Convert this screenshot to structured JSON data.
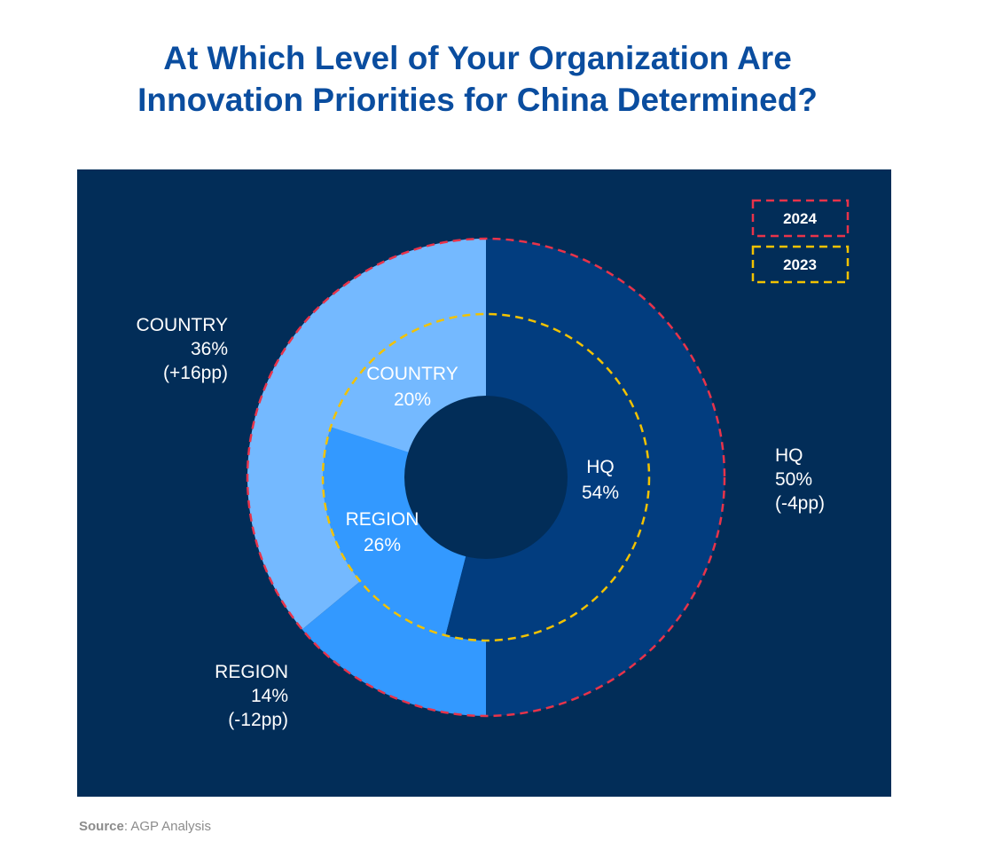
{
  "title_line1": "At Which Level of Your Organization Are",
  "title_line2": "Innovation Priorities for China Determined?",
  "source_label": "Source",
  "source_text": ": AGP Analysis",
  "colors": {
    "title": "#0a4d9f",
    "panel_bg": "#022d58",
    "hq": "#023d7f",
    "region": "#3399ff",
    "country": "#74b9ff",
    "legend_2024": "#e8334a",
    "legend_2023": "#f2c200",
    "label": "#ffffff"
  },
  "legend": {
    "items": [
      {
        "label": "2024",
        "color": "#e8334a"
      },
      {
        "label": "2023",
        "color": "#f2c200"
      }
    ]
  },
  "chart_data": {
    "type": "pie",
    "variant": "nested-donut",
    "series": [
      {
        "name": "2024",
        "ring": "outer",
        "categories": [
          "HQ",
          "REGION",
          "COUNTRY"
        ],
        "values": [
          50,
          14,
          36
        ],
        "value_labels": [
          "50%",
          "14%",
          "36%"
        ],
        "changes": [
          "(-4pp)",
          "(-12pp)",
          "(+16pp)"
        ]
      },
      {
        "name": "2023",
        "ring": "inner",
        "categories": [
          "HQ",
          "REGION",
          "COUNTRY"
        ],
        "values": [
          54,
          26,
          20
        ],
        "value_labels": [
          "54%",
          "26%",
          "20%"
        ]
      }
    ]
  }
}
